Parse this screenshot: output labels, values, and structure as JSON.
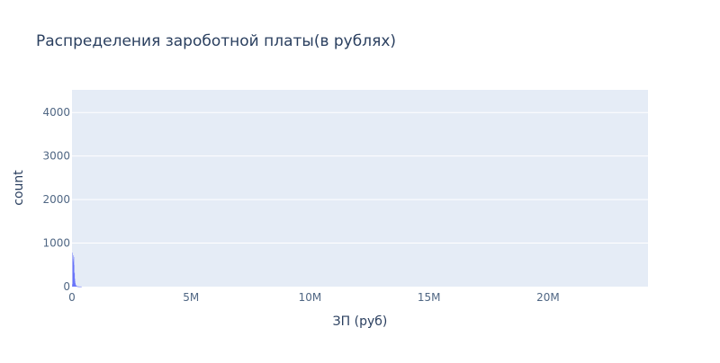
{
  "chart_data": {
    "type": "bar",
    "title": "Распределения зароботной платы(в рублях)",
    "xlabel": "ЗП (руб)",
    "ylabel": "count",
    "x_ticks": [
      {
        "value": 0,
        "label": "0"
      },
      {
        "value": 5000000,
        "label": "5M"
      },
      {
        "value": 10000000,
        "label": "10M"
      },
      {
        "value": 15000000,
        "label": "15M"
      },
      {
        "value": 20000000,
        "label": "20M"
      }
    ],
    "y_ticks": [
      {
        "value": 0,
        "label": "0"
      },
      {
        "value": 1000,
        "label": "1000"
      },
      {
        "value": 2000,
        "label": "2000"
      },
      {
        "value": 3000,
        "label": "3000"
      },
      {
        "value": 4000,
        "label": "4000"
      }
    ],
    "xlim": [
      0,
      24200000
    ],
    "ylim": [
      0,
      4520
    ],
    "bin_width": 10000,
    "bins_start": [
      0,
      10000,
      20000,
      30000,
      40000,
      50000,
      60000,
      70000,
      80000,
      90000,
      100000,
      110000,
      120000,
      130000,
      140000,
      150000,
      160000,
      170000,
      180000,
      190000,
      200000,
      210000,
      220000,
      230000,
      240000,
      250000,
      260000,
      270000,
      280000,
      290000,
      300000,
      310000,
      320000,
      330000,
      340000,
      350000,
      360000,
      370000,
      380000,
      390000
    ],
    "values": [
      10,
      60,
      780,
      640,
      560,
      720,
      600,
      680,
      500,
      300,
      320,
      180,
      120,
      80,
      55,
      40,
      30,
      20,
      15,
      12,
      10,
      8,
      6,
      5,
      4,
      3,
      3,
      2,
      2,
      2,
      1,
      1,
      1,
      1,
      1,
      1,
      1,
      1,
      1,
      1
    ],
    "grid": true,
    "colors": {
      "bar": "#636efa",
      "plot_bg": "#e5ecf6",
      "grid": "#ffffff",
      "text": "#2a3f5f",
      "tick_text": "#506784"
    }
  }
}
